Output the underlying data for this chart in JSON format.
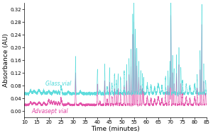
{
  "xlim": [
    10,
    85
  ],
  "ylim": [
    -0.02,
    0.34
  ],
  "yticks": [
    0.0,
    0.04,
    0.08,
    0.12,
    0.16,
    0.2,
    0.24,
    0.28,
    0.32
  ],
  "xticks": [
    10,
    15,
    20,
    25,
    30,
    35,
    40,
    45,
    50,
    55,
    60,
    65,
    70,
    75,
    80,
    85
  ],
  "xlabel": "Time (minutes)",
  "ylabel": "Absorbance (AU)",
  "glass_color": "#4dd9d9",
  "advasept_color": "#e040a0",
  "glass_label": "Glass vial",
  "advasept_label": "Advasept vial",
  "glass_baseline": 0.055,
  "advasept_baseline": 0.02,
  "background_color": "#ffffff",
  "label_fontsize": 5.5,
  "tick_fontsize": 5
}
